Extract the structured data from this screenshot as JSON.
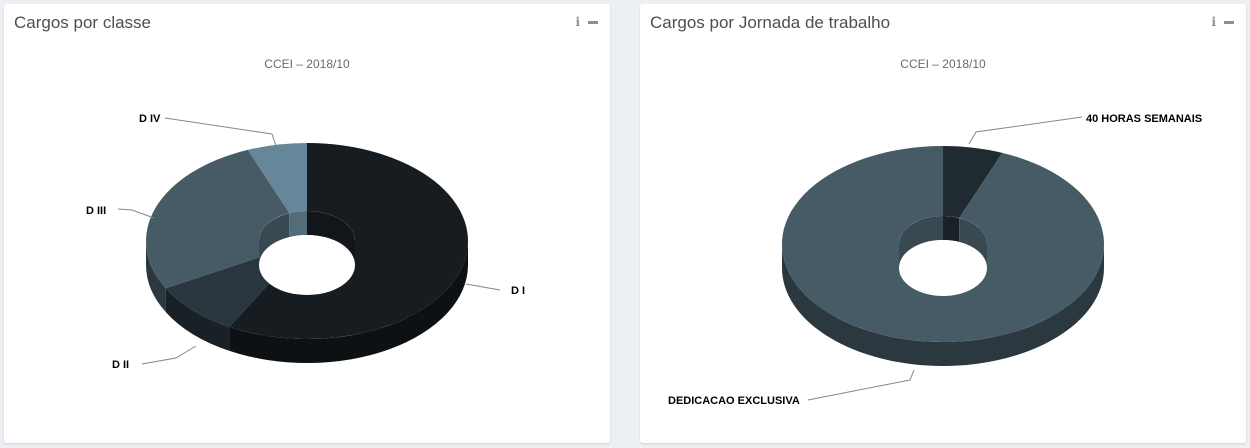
{
  "panels": [
    {
      "title": "Cargos por classe",
      "info_icon": "info-icon",
      "minimize_icon": "minimize-icon"
    },
    {
      "title": "Cargos por Jornada de trabalho",
      "info_icon": "info-icon",
      "minimize_icon": "minimize-icon"
    }
  ],
  "chart_data": [
    {
      "type": "pie",
      "variant": "3d-donut",
      "title": "Cargos por classe",
      "subtitle": "CCEI – 2018/10",
      "categories": [
        "D I",
        "D II",
        "D III",
        "D IV"
      ],
      "values": [
        58,
        9,
        27,
        6
      ],
      "colors": [
        "#171c20",
        "#29363e",
        "#475b67",
        "#66879a"
      ]
    },
    {
      "type": "pie",
      "variant": "3d-donut",
      "title": "Cargos por Jornada de trabalho",
      "subtitle": "CCEI – 2018/10",
      "categories": [
        "40 HORAS SEMANAIS",
        "DEDICACAO EXCLUSIVA"
      ],
      "values": [
        6,
        94
      ],
      "colors": [
        "#1f2a31",
        "#475b67"
      ]
    }
  ]
}
